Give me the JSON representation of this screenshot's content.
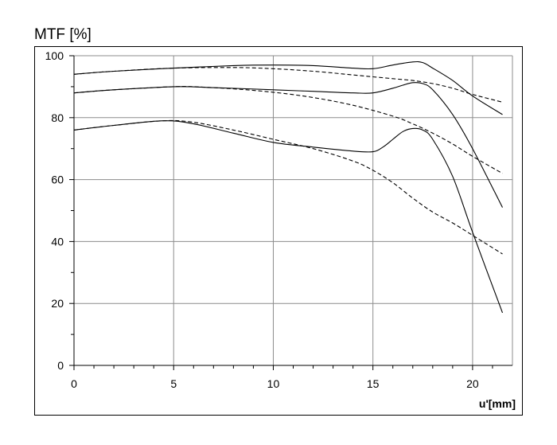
{
  "chart_data": {
    "type": "line",
    "title": "MTF [%]",
    "xlabel": "u'[mm]",
    "ylabel": "",
    "xlim": [
      0,
      22
    ],
    "ylim": [
      0,
      100
    ],
    "xticks": [
      0,
      5,
      10,
      15,
      20
    ],
    "yticks": [
      0,
      20,
      40,
      60,
      80,
      100
    ],
    "grid": true,
    "series": [
      {
        "style": "solid",
        "x": [
          0,
          2,
          5,
          8,
          10,
          12,
          14,
          15,
          16,
          17,
          17.5,
          18,
          19,
          20,
          21.5
        ],
        "y": [
          94,
          95,
          96,
          96.8,
          97,
          96.8,
          96,
          95.8,
          97,
          98,
          97.8,
          96,
          92,
          87,
          81
        ]
      },
      {
        "style": "dashed",
        "x": [
          0,
          2,
          5,
          8,
          10,
          12,
          14,
          15,
          16,
          17,
          18,
          19,
          20,
          21.5
        ],
        "y": [
          94,
          95,
          96,
          96.2,
          95.8,
          95,
          93.8,
          93.2,
          92.6,
          92,
          91,
          89.5,
          87.5,
          85
        ]
      },
      {
        "style": "solid",
        "x": [
          0,
          2,
          5,
          7,
          10,
          12,
          14,
          15,
          16,
          16.5,
          17,
          17.5,
          18,
          19,
          20,
          21.5
        ],
        "y": [
          88,
          89,
          90,
          89.7,
          89,
          88.5,
          88,
          88,
          89.5,
          90.5,
          91.3,
          91,
          89,
          81,
          70,
          51
        ]
      },
      {
        "style": "dashed",
        "x": [
          0,
          2,
          5,
          6,
          8,
          10,
          12,
          14,
          16,
          17,
          18,
          19,
          20,
          21.5
        ],
        "y": [
          88,
          89,
          90,
          90,
          89.3,
          88.2,
          86.5,
          84,
          80.5,
          78,
          75,
          71.5,
          67.5,
          62
        ]
      },
      {
        "style": "solid",
        "x": [
          0,
          2,
          4.5,
          6,
          8,
          10,
          12,
          14,
          15,
          15.5,
          16,
          16.5,
          17,
          17.5,
          18,
          19,
          20,
          21.5
        ],
        "y": [
          76,
          77.5,
          79,
          78,
          75,
          72,
          70.5,
          69.2,
          69,
          70.5,
          73,
          75.5,
          76.5,
          76,
          73,
          61,
          43,
          17
        ]
      },
      {
        "style": "dashed",
        "x": [
          0,
          2,
          4.5,
          6,
          8,
          10,
          12,
          14,
          15,
          16,
          17,
          18,
          19,
          20,
          21.5
        ],
        "y": [
          76,
          77.5,
          79,
          78.5,
          76,
          73,
          70,
          66,
          63,
          59,
          54,
          49.5,
          46,
          42,
          36
        ]
      }
    ]
  }
}
